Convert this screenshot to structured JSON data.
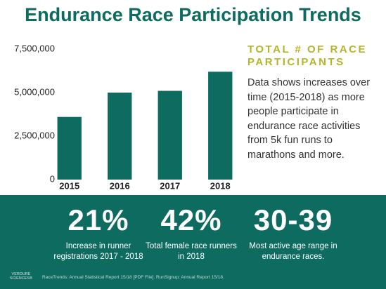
{
  "title": "Endurance Race Participation Trends",
  "chart_data": {
    "type": "bar",
    "categories": [
      "2015",
      "2016",
      "2017",
      "2018"
    ],
    "values": [
      3600000,
      5000000,
      5100000,
      6200000
    ],
    "color": "#0e6b60",
    "ylim": [
      0,
      7500000
    ],
    "yticks": [
      0,
      {
        "value": 2500000,
        "label": "2,500,000"
      },
      {
        "value": 5000000,
        "label": "5,000,000"
      },
      {
        "value": 7500000,
        "label": "7,500,000"
      }
    ]
  },
  "sidebar": {
    "heading": "TOTAL # OF RACE PARTICIPANTS",
    "body": "Data shows increases over time (2015-2018) as more people participate in endurance race activities from 5k fun runs to marathons and more."
  },
  "stats": [
    {
      "value": "21%",
      "caption": "Increase in runner registrations 2017 - 2018"
    },
    {
      "value": "42%",
      "caption": "Total female race runners in 2018"
    },
    {
      "value": "30-39",
      "caption": "Most active age range in endurance races."
    }
  ],
  "footer": {
    "logo": "VERDURE SCIENCES®",
    "source": "RaceTrends: Annual Statistical Report 15/18 [PDF File]. RunSignup: Annual Report 15/18."
  }
}
